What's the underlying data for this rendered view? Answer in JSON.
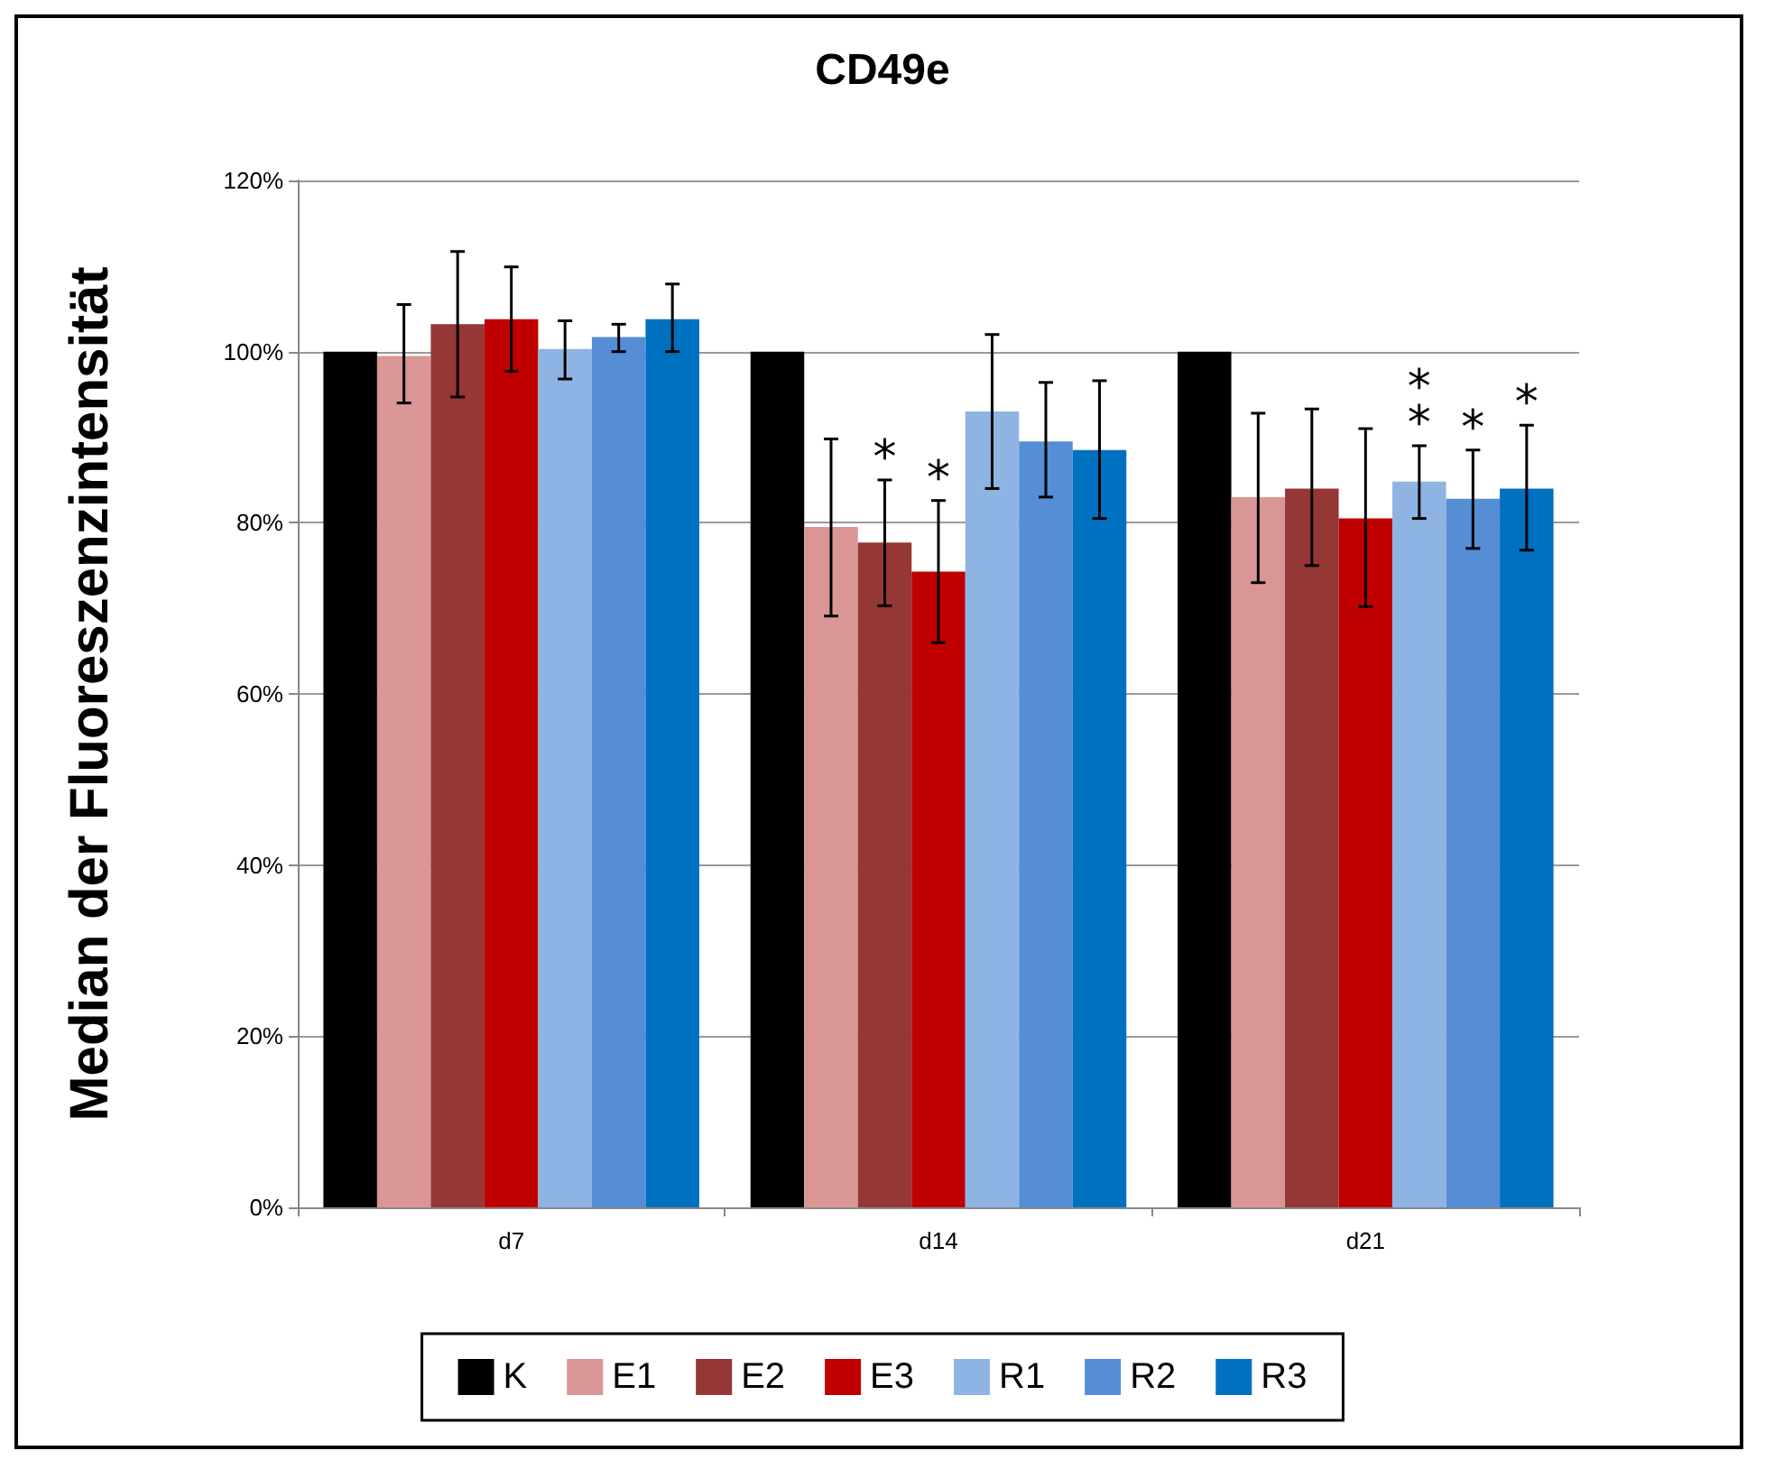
{
  "chart_data": {
    "type": "bar",
    "title": "CD49e",
    "ylabel": "Median der Fluoreszenzintensität",
    "categories": [
      "d7",
      "d14",
      "d21"
    ],
    "series": [
      {
        "name": "K",
        "color": "#000000",
        "values": [
          100,
          100,
          100
        ]
      },
      {
        "name": "E1",
        "color": "#d99694",
        "values": [
          99.5,
          79.5,
          83
        ],
        "errors": [
          [
            94,
            105.5
          ],
          [
            69.1,
            89.8
          ],
          [
            73,
            92.8
          ]
        ]
      },
      {
        "name": "E2",
        "color": "#953735",
        "values": [
          103.2,
          77.7,
          84
        ],
        "errors": [
          [
            94.7,
            111.7
          ],
          [
            70.3,
            85
          ],
          [
            75,
            93.3
          ]
        ],
        "value_labels": [
          null,
          "*",
          null
        ]
      },
      {
        "name": "E3",
        "color": "#c00000",
        "values": [
          103.8,
          74.3,
          80.5
        ],
        "errors": [
          [
            97.7,
            109.9
          ],
          [
            66,
            82.6
          ],
          [
            70.2,
            91
          ]
        ],
        "value_labels": [
          null,
          "*",
          null
        ]
      },
      {
        "name": "R1",
        "color": "#8eb4e3",
        "values": [
          100.3,
          93,
          84.8
        ],
        "errors": [
          [
            96.8,
            103.6
          ],
          [
            84,
            102
          ],
          [
            80.5,
            89
          ]
        ],
        "value_labels": [
          null,
          null,
          "*\n*"
        ]
      },
      {
        "name": "R2",
        "color": "#558ed5",
        "values": [
          101.7,
          89.5,
          82.8
        ],
        "errors": [
          [
            100,
            103.2
          ],
          [
            83,
            96.4
          ],
          [
            77,
            88.5
          ]
        ],
        "value_labels": [
          null,
          null,
          "*"
        ]
      },
      {
        "name": "R3",
        "color": "#0070c0",
        "values": [
          103.8,
          88.5,
          84
        ],
        "errors": [
          [
            100,
            107.9
          ],
          [
            80.5,
            96.6
          ],
          [
            76.8,
            91.4
          ]
        ],
        "value_labels": [
          null,
          null,
          "*"
        ]
      }
    ],
    "ylim": [
      0,
      120
    ],
    "yticks": [
      {
        "value": 0,
        "label": "0%"
      },
      {
        "value": 20,
        "label": "20%"
      },
      {
        "value": 40,
        "label": "40%"
      },
      {
        "value": 60,
        "label": "60%"
      },
      {
        "value": 80,
        "label": "80%"
      },
      {
        "value": 100,
        "label": "100%"
      },
      {
        "value": 120,
        "label": "120%"
      }
    ],
    "grid": "y",
    "legend": "bottom"
  }
}
